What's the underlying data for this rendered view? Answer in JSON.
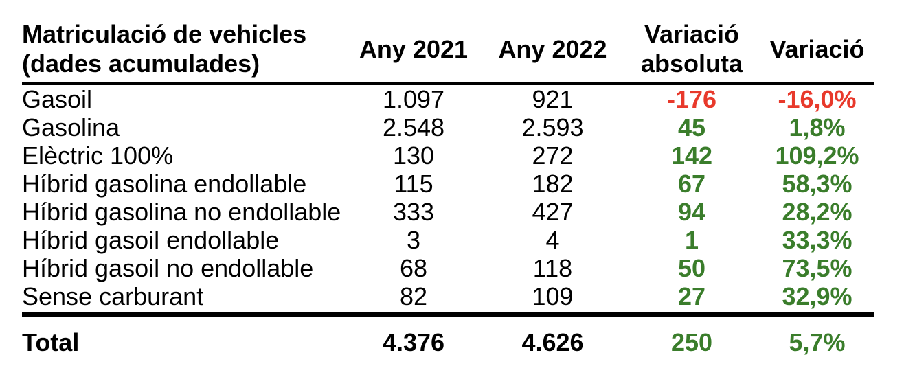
{
  "chart_data": {
    "type": "table",
    "title": "Matriculació de vehicles (dades acumulades)",
    "header": {
      "title_line1": "Matriculació de vehicles",
      "title_line2": "(dades acumulades)",
      "col_any_2021": "Any 2021",
      "col_any_2022": "Any 2022",
      "col_variacio_absoluta": "Variació absoluta",
      "col_variacio_pct": "Variació"
    },
    "columns": [
      "Matriculació de vehicles (dades acumulades)",
      "Any 2021",
      "Any 2022",
      "Variació absoluta",
      "Variació"
    ],
    "rows": [
      {
        "label": "Gasoil",
        "any_2021": "1.097",
        "any_2022": "921",
        "variacio_absoluta": "-176",
        "variacio_pct": "-16,0%",
        "trend": "negative"
      },
      {
        "label": "Gasolina",
        "any_2021": "2.548",
        "any_2022": "2.593",
        "variacio_absoluta": "45",
        "variacio_pct": "1,8%",
        "trend": "positive"
      },
      {
        "label": "Elèctric 100%",
        "any_2021": "130",
        "any_2022": "272",
        "variacio_absoluta": "142",
        "variacio_pct": "109,2%",
        "trend": "positive"
      },
      {
        "label": "Híbrid gasolina endollable",
        "any_2021": "115",
        "any_2022": "182",
        "variacio_absoluta": "67",
        "variacio_pct": "58,3%",
        "trend": "positive"
      },
      {
        "label": "Híbrid gasolina no endollable",
        "any_2021": "333",
        "any_2022": "427",
        "variacio_absoluta": "94",
        "variacio_pct": "28,2%",
        "trend": "positive"
      },
      {
        "label": "Híbrid gasoil endollable",
        "any_2021": "3",
        "any_2022": "4",
        "variacio_absoluta": "1",
        "variacio_pct": "33,3%",
        "trend": "positive"
      },
      {
        "label": "Híbrid gasoil no endollable",
        "any_2021": "68",
        "any_2022": "118",
        "variacio_absoluta": "50",
        "variacio_pct": "73,5%",
        "trend": "positive"
      },
      {
        "label": "Sense carburant",
        "any_2021": "82",
        "any_2022": "109",
        "variacio_absoluta": "27",
        "variacio_pct": "32,9%",
        "trend": "positive"
      }
    ],
    "total": {
      "label": "Total",
      "any_2021": "4.376",
      "any_2022": "4.626",
      "variacio_absoluta": "250",
      "variacio_pct": "5,7%",
      "trend": "positive"
    }
  },
  "colors": {
    "positive": "#3A7D2B",
    "negative": "#E8392B",
    "text": "#000000",
    "background": "#FFFFFF",
    "border": "#000000"
  }
}
